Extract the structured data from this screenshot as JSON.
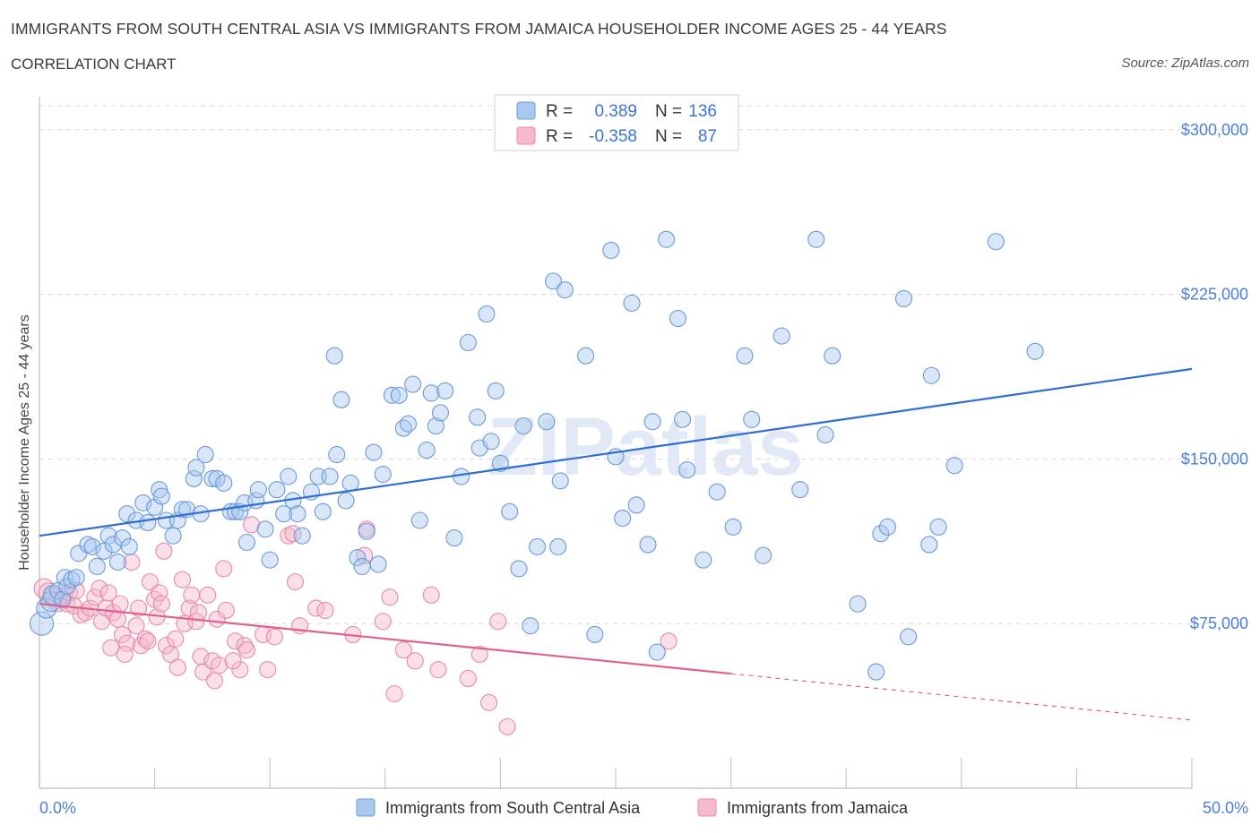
{
  "header": {
    "title": "IMMIGRANTS FROM SOUTH CENTRAL ASIA VS IMMIGRANTS FROM JAMAICA HOUSEHOLDER INCOME AGES 25 - 44 YEARS",
    "subtitle": "CORRELATION CHART",
    "source": "Source: ZipAtlas.com"
  },
  "watermark": "ZIPatlas",
  "colors": {
    "blue_fill": "#a8c8f0",
    "blue_stroke": "#6a9ad8",
    "blue_line": "#2f6fd0",
    "pink_fill": "#f5b8cc",
    "pink_stroke": "#e58aa8",
    "pink_line": "#e0608e",
    "axis_label": "#4a7fd4",
    "grid": "#d8d8d8"
  },
  "stats_legend": {
    "rows": [
      {
        "series": "blue",
        "r_label": "R =",
        "r_value": "0.389",
        "n_label": "N =",
        "n_value": "136"
      },
      {
        "series": "pink",
        "r_label": "R =",
        "r_value": "-0.358",
        "n_label": "N =",
        "n_value": "87"
      }
    ]
  },
  "chart_data": {
    "type": "scatter",
    "title": "IMMIGRANTS FROM SOUTH CENTRAL ASIA VS IMMIGRANTS FROM JAMAICA HOUSEHOLDER INCOME AGES 25 - 44 YEARS",
    "xlabel": "",
    "ylabel": "Householder Income Ages 25 - 44 years",
    "xlim": [
      0,
      50
    ],
    "ylim": [
      0,
      315000
    ],
    "y_ticks": [
      {
        "value": 75000,
        "label": "$75,000"
      },
      {
        "value": 150000,
        "label": "$150,000"
      },
      {
        "value": 225000,
        "label": "$225,000"
      },
      {
        "value": 300000,
        "label": "$300,000"
      }
    ],
    "x_tick_labels": [
      {
        "value": 0,
        "label": "0.0%"
      },
      {
        "value": 50,
        "label": "50.0%"
      }
    ],
    "x_minor_ticks": [
      0,
      5,
      10,
      15,
      20,
      25,
      30,
      35,
      40,
      45,
      50
    ],
    "grid": true,
    "series": [
      {
        "name": "Immigrants from South Central Asia",
        "color": "blue",
        "trend": {
          "x": [
            0,
            50
          ],
          "y": [
            115000,
            191000
          ],
          "dashed_from": null
        },
        "points": [
          [
            0.1,
            75000
          ],
          [
            0.3,
            82000
          ],
          [
            0.5,
            85000
          ],
          [
            0.6,
            88000
          ],
          [
            0.8,
            90000
          ],
          [
            1.0,
            86000
          ],
          [
            1.1,
            96000
          ],
          [
            1.2,
            92000
          ],
          [
            1.4,
            95000
          ],
          [
            1.6,
            96000
          ],
          [
            1.7,
            107000
          ],
          [
            2.1,
            111000
          ],
          [
            2.3,
            110000
          ],
          [
            2.5,
            101000
          ],
          [
            2.8,
            108000
          ],
          [
            3.0,
            115000
          ],
          [
            3.2,
            111000
          ],
          [
            3.4,
            103000
          ],
          [
            3.6,
            114000
          ],
          [
            3.9,
            110000
          ],
          [
            3.8,
            125000
          ],
          [
            4.2,
            122000
          ],
          [
            4.5,
            130000
          ],
          [
            4.7,
            121000
          ],
          [
            5.0,
            128000
          ],
          [
            5.2,
            136000
          ],
          [
            5.3,
            133000
          ],
          [
            5.5,
            122000
          ],
          [
            5.8,
            115000
          ],
          [
            6.0,
            122000
          ],
          [
            6.2,
            127000
          ],
          [
            6.4,
            127000
          ],
          [
            6.7,
            141000
          ],
          [
            6.8,
            146000
          ],
          [
            7.0,
            125000
          ],
          [
            7.2,
            152000
          ],
          [
            7.5,
            141000
          ],
          [
            7.7,
            141000
          ],
          [
            8.0,
            139000
          ],
          [
            8.3,
            126000
          ],
          [
            8.5,
            126000
          ],
          [
            8.7,
            126000
          ],
          [
            8.9,
            130000
          ],
          [
            9.0,
            112000
          ],
          [
            9.4,
            131000
          ],
          [
            9.5,
            136000
          ],
          [
            9.8,
            118000
          ],
          [
            10.0,
            104000
          ],
          [
            10.3,
            136000
          ],
          [
            10.6,
            125000
          ],
          [
            10.8,
            142000
          ],
          [
            11.0,
            131000
          ],
          [
            11.2,
            125000
          ],
          [
            11.4,
            115000
          ],
          [
            11.8,
            135000
          ],
          [
            12.1,
            142000
          ],
          [
            12.3,
            126000
          ],
          [
            12.6,
            142000
          ],
          [
            12.8,
            197000
          ],
          [
            12.9,
            152000
          ],
          [
            13.1,
            177000
          ],
          [
            13.3,
            131000
          ],
          [
            13.5,
            139000
          ],
          [
            13.8,
            105000
          ],
          [
            14.0,
            101000
          ],
          [
            14.2,
            117000
          ],
          [
            14.5,
            153000
          ],
          [
            14.7,
            102000
          ],
          [
            14.9,
            143000
          ],
          [
            15.3,
            179000
          ],
          [
            15.6,
            179000
          ],
          [
            15.8,
            164000
          ],
          [
            16.0,
            166000
          ],
          [
            16.2,
            184000
          ],
          [
            16.5,
            122000
          ],
          [
            16.8,
            154000
          ],
          [
            17.0,
            180000
          ],
          [
            17.2,
            165000
          ],
          [
            17.4,
            171000
          ],
          [
            17.6,
            181000
          ],
          [
            18.0,
            114000
          ],
          [
            18.3,
            142000
          ],
          [
            18.6,
            203000
          ],
          [
            19.0,
            169000
          ],
          [
            19.1,
            155000
          ],
          [
            19.4,
            216000
          ],
          [
            19.6,
            158000
          ],
          [
            19.8,
            181000
          ],
          [
            20.4,
            126000
          ],
          [
            20.8,
            100000
          ],
          [
            21.0,
            165000
          ],
          [
            21.3,
            74000
          ],
          [
            21.6,
            110000
          ],
          [
            22.0,
            167000
          ],
          [
            22.3,
            231000
          ],
          [
            22.5,
            110000
          ],
          [
            22.8,
            227000
          ],
          [
            23.7,
            197000
          ],
          [
            24.1,
            70000
          ],
          [
            24.8,
            245000
          ],
          [
            25.0,
            151000
          ],
          [
            25.3,
            123000
          ],
          [
            25.7,
            221000
          ],
          [
            25.9,
            129000
          ],
          [
            26.4,
            111000
          ],
          [
            26.6,
            167000
          ],
          [
            26.8,
            62000
          ],
          [
            27.2,
            250000
          ],
          [
            27.7,
            214000
          ],
          [
            27.9,
            168000
          ],
          [
            28.1,
            145000
          ],
          [
            28.8,
            104000
          ],
          [
            29.4,
            135000
          ],
          [
            30.1,
            119000
          ],
          [
            30.6,
            197000
          ],
          [
            30.9,
            168000
          ],
          [
            31.4,
            106000
          ],
          [
            32.2,
            206000
          ],
          [
            33.0,
            136000
          ],
          [
            33.7,
            250000
          ],
          [
            34.1,
            161000
          ],
          [
            34.4,
            197000
          ],
          [
            35.5,
            84000
          ],
          [
            36.3,
            53000
          ],
          [
            36.5,
            116000
          ],
          [
            36.8,
            119000
          ],
          [
            37.5,
            223000
          ],
          [
            37.7,
            69000
          ],
          [
            38.6,
            111000
          ],
          [
            38.7,
            188000
          ],
          [
            39.0,
            119000
          ],
          [
            39.7,
            147000
          ],
          [
            41.5,
            249000
          ],
          [
            43.2,
            199000
          ],
          [
            20.0,
            148000
          ],
          [
            22.6,
            140000
          ]
        ]
      },
      {
        "name": "Immigrants from Jamaica",
        "color": "pink",
        "trend": {
          "x": [
            0,
            50
          ],
          "y": [
            84000,
            31000
          ],
          "dashed_from": 30
        },
        "points": [
          [
            0.2,
            91000
          ],
          [
            0.4,
            89000
          ],
          [
            0.6,
            87000
          ],
          [
            0.8,
            85000
          ],
          [
            1.0,
            86000
          ],
          [
            1.1,
            88000
          ],
          [
            1.2,
            84000
          ],
          [
            1.3,
            89000
          ],
          [
            1.5,
            83000
          ],
          [
            1.6,
            90000
          ],
          [
            1.8,
            79000
          ],
          [
            2.0,
            80000
          ],
          [
            2.2,
            82000
          ],
          [
            2.4,
            87000
          ],
          [
            2.6,
            91000
          ],
          [
            2.7,
            76000
          ],
          [
            2.9,
            82000
          ],
          [
            3.0,
            89000
          ],
          [
            3.1,
            64000
          ],
          [
            3.2,
            80000
          ],
          [
            3.4,
            77000
          ],
          [
            3.5,
            84000
          ],
          [
            3.6,
            70000
          ],
          [
            3.8,
            66000
          ],
          [
            4.0,
            103000
          ],
          [
            4.2,
            74000
          ],
          [
            4.3,
            82000
          ],
          [
            4.4,
            65000
          ],
          [
            4.6,
            68000
          ],
          [
            4.7,
            67000
          ],
          [
            4.8,
            94000
          ],
          [
            5.0,
            86000
          ],
          [
            5.1,
            78000
          ],
          [
            5.2,
            89000
          ],
          [
            5.3,
            84000
          ],
          [
            5.4,
            108000
          ],
          [
            5.5,
            65000
          ],
          [
            5.7,
            61000
          ],
          [
            5.9,
            68000
          ],
          [
            6.0,
            55000
          ],
          [
            6.2,
            95000
          ],
          [
            6.3,
            75000
          ],
          [
            6.5,
            82000
          ],
          [
            6.6,
            88000
          ],
          [
            6.8,
            76000
          ],
          [
            7.0,
            60000
          ],
          [
            7.1,
            53000
          ],
          [
            7.3,
            88000
          ],
          [
            7.5,
            58000
          ],
          [
            7.6,
            49000
          ],
          [
            7.7,
            77000
          ],
          [
            7.8,
            56000
          ],
          [
            8.0,
            100000
          ],
          [
            8.1,
            81000
          ],
          [
            8.5,
            67000
          ],
          [
            8.7,
            54000
          ],
          [
            8.9,
            65000
          ],
          [
            9.0,
            63000
          ],
          [
            9.2,
            120000
          ],
          [
            9.7,
            70000
          ],
          [
            9.9,
            54000
          ],
          [
            10.2,
            69000
          ],
          [
            10.8,
            115000
          ],
          [
            11.0,
            116000
          ],
          [
            11.3,
            74000
          ],
          [
            12.0,
            82000
          ],
          [
            12.4,
            81000
          ],
          [
            13.6,
            70000
          ],
          [
            14.1,
            106000
          ],
          [
            14.2,
            118000
          ],
          [
            14.9,
            76000
          ],
          [
            15.2,
            87000
          ],
          [
            15.4,
            43000
          ],
          [
            15.8,
            63000
          ],
          [
            16.3,
            58000
          ],
          [
            17.0,
            88000
          ],
          [
            17.3,
            54000
          ],
          [
            18.6,
            50000
          ],
          [
            19.1,
            61000
          ],
          [
            19.5,
            39000
          ],
          [
            19.9,
            76000
          ],
          [
            20.3,
            28000
          ],
          [
            27.3,
            67000
          ],
          [
            8.4,
            58000
          ],
          [
            11.1,
            94000
          ],
          [
            3.7,
            61000
          ],
          [
            6.9,
            80000
          ]
        ]
      }
    ]
  },
  "bottom_legend": {
    "items": [
      {
        "series": "blue",
        "label": "Immigrants from South Central Asia"
      },
      {
        "series": "pink",
        "label": "Immigrants from Jamaica"
      }
    ]
  }
}
